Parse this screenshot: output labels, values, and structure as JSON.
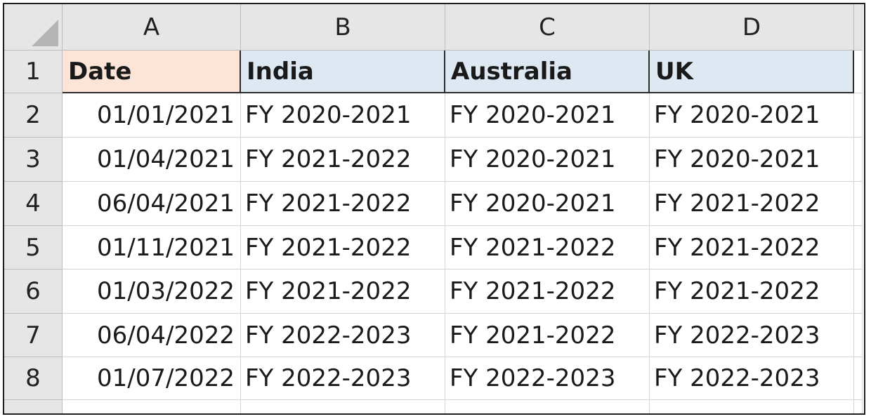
{
  "columns": [
    "A",
    "B",
    "C",
    "D"
  ],
  "rows": [
    "1",
    "2",
    "3",
    "4",
    "5",
    "6",
    "7",
    "8"
  ],
  "headers": [
    "Date",
    "India",
    "Australia",
    "UK"
  ],
  "data": [
    [
      "01/01/2021",
      "FY 2020-2021",
      "FY 2020-2021",
      "FY 2020-2021"
    ],
    [
      "01/04/2021",
      "FY 2021-2022",
      "FY 2020-2021",
      "FY 2020-2021"
    ],
    [
      "06/04/2021",
      "FY 2021-2022",
      "FY 2020-2021",
      "FY 2021-2022"
    ],
    [
      "01/11/2021",
      "FY 2021-2022",
      "FY 2021-2022",
      "FY 2021-2022"
    ],
    [
      "01/03/2022",
      "FY 2021-2022",
      "FY 2021-2022",
      "FY 2021-2022"
    ],
    [
      "06/04/2022",
      "FY 2022-2023",
      "FY 2021-2022",
      "FY 2022-2023"
    ],
    [
      "01/07/2022",
      "FY 2022-2023",
      "FY 2022-2023",
      "FY 2022-2023"
    ]
  ],
  "colors": {
    "date_header_fill": "#fce4d6",
    "country_header_fill": "#dde8f3",
    "grid_header_fill": "#e6e6e6"
  }
}
